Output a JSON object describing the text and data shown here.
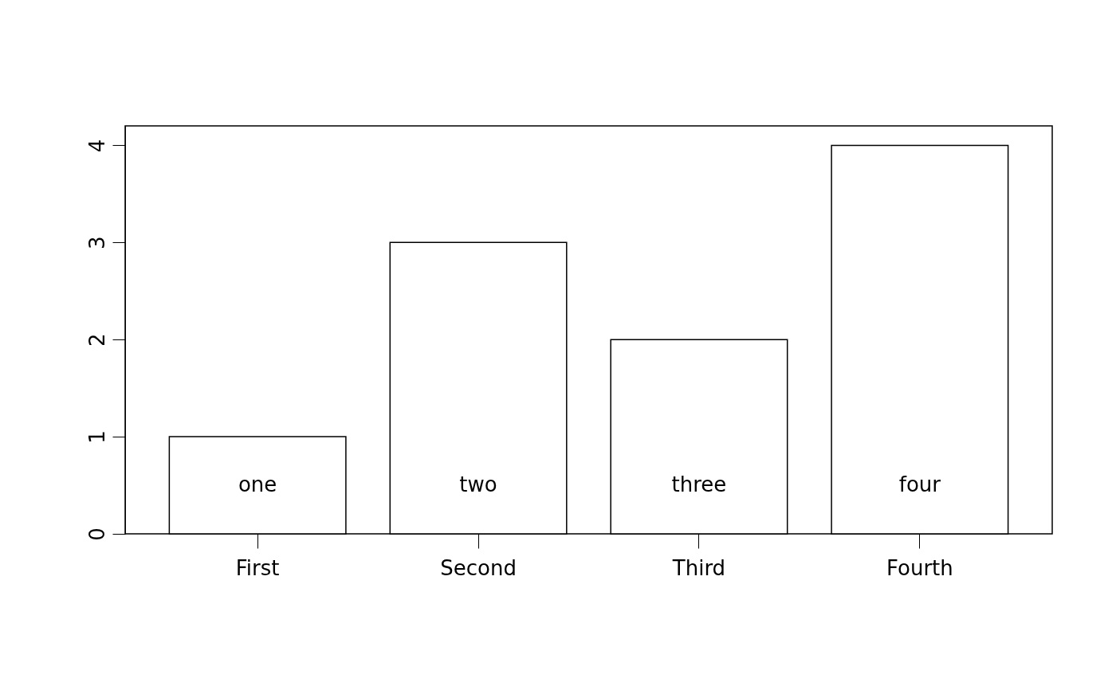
{
  "chart_data": {
    "type": "bar",
    "categories": [
      "First",
      "Second",
      "Third",
      "Fourth"
    ],
    "values": [
      1,
      3,
      2,
      4
    ],
    "color": "#ffffff",
    "ylim": [
      0,
      4.2
    ],
    "yticks": [
      0,
      1,
      2,
      3,
      4
    ],
    "annotations": [
      "one",
      "two",
      "three",
      "four"
    ]
  }
}
